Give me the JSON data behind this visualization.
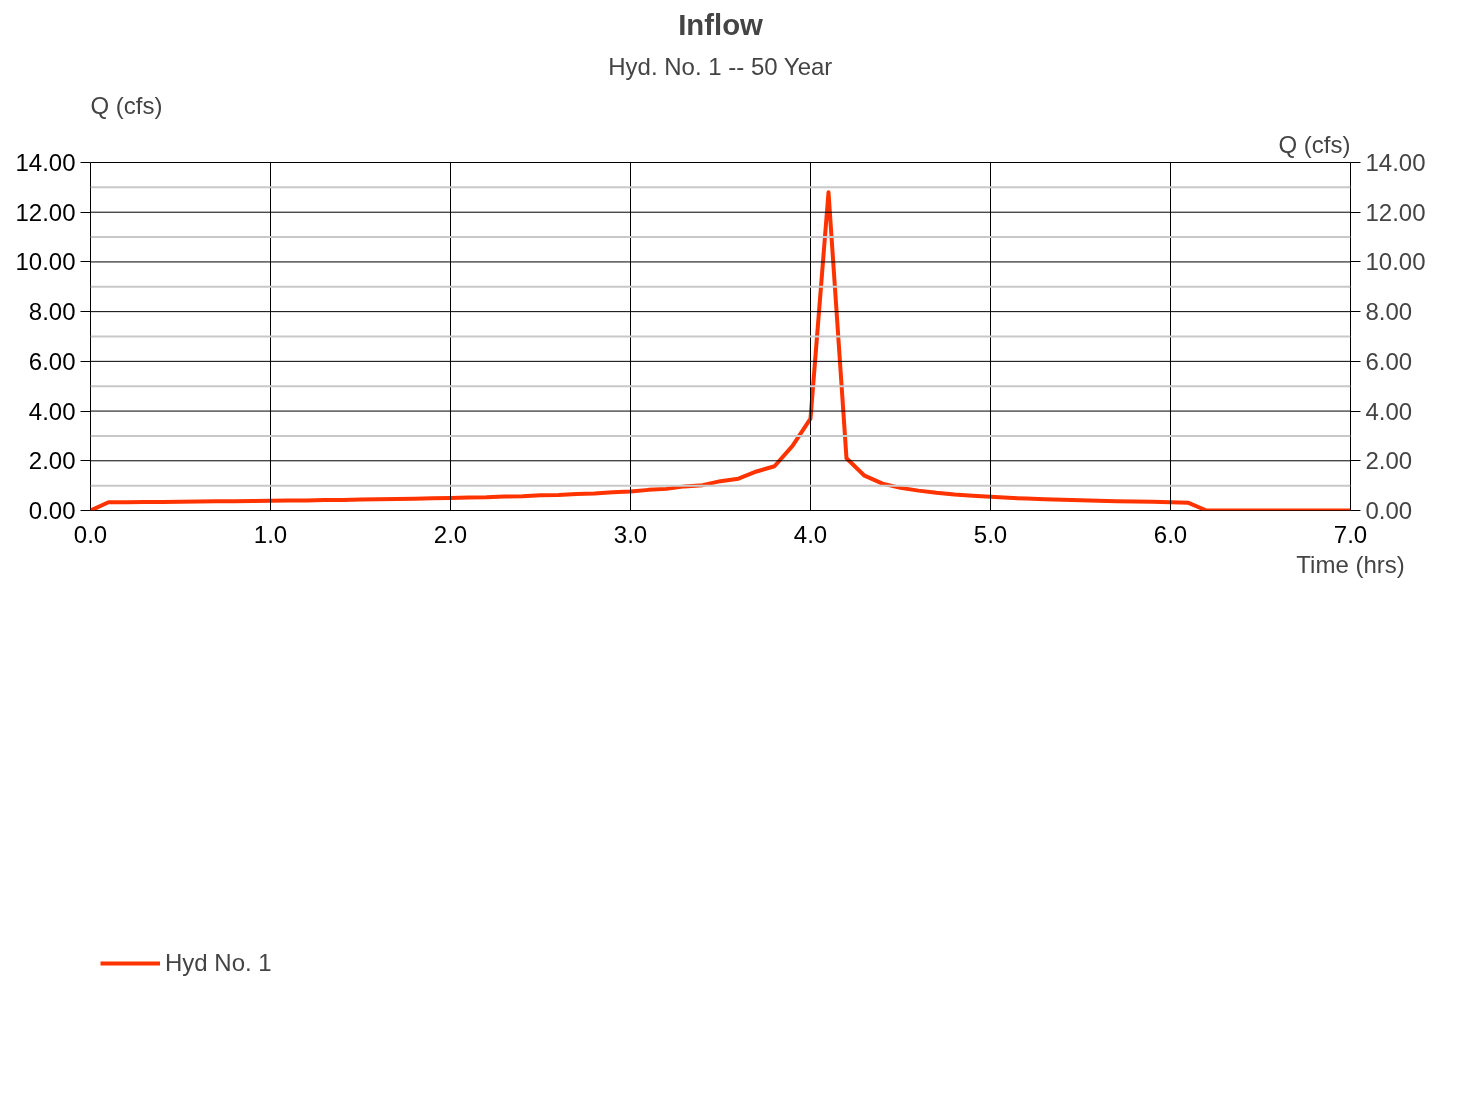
{
  "chart_data": {
    "type": "line",
    "title": "Inflow",
    "subtitle": "Hyd. No. 1 -- 50 Year",
    "xlabel": "Time (hrs)",
    "ylabel": "Q (cfs)",
    "y2label": "Q (cfs)",
    "x": [
      0.0,
      0.1,
      0.2,
      0.3,
      0.4,
      0.5,
      0.6,
      0.7,
      0.8,
      0.9,
      1.0,
      1.1,
      1.2,
      1.3,
      1.4,
      1.5,
      1.6,
      1.7,
      1.8,
      1.9,
      2.0,
      2.1,
      2.2,
      2.3,
      2.4,
      2.5,
      2.6,
      2.7,
      2.8,
      2.9,
      3.0,
      3.1,
      3.2,
      3.3,
      3.4,
      3.5,
      3.6,
      3.7,
      3.8,
      3.9,
      4.0,
      4.1,
      4.2,
      4.3,
      4.4,
      4.5,
      4.6,
      4.7,
      4.8,
      4.9,
      5.0,
      5.1,
      5.2,
      5.3,
      5.4,
      5.5,
      5.6,
      5.7,
      5.8,
      5.9,
      6.0,
      6.1,
      6.2,
      6.3,
      6.4,
      6.5,
      6.6,
      6.7,
      6.8,
      6.9,
      7.0
    ],
    "series": [
      {
        "name": "Hyd No. 1",
        "color": "#ff3300",
        "values": [
          0,
          0.33,
          0.33,
          0.34,
          0.34,
          0.35,
          0.36,
          0.37,
          0.37,
          0.38,
          0.39,
          0.4,
          0.4,
          0.42,
          0.42,
          0.44,
          0.45,
          0.46,
          0.47,
          0.49,
          0.5,
          0.52,
          0.53,
          0.56,
          0.57,
          0.61,
          0.62,
          0.66,
          0.68,
          0.73,
          0.76,
          0.83,
          0.87,
          0.97,
          1.02,
          1.18,
          1.28,
          1.57,
          1.78,
          2.6,
          3.7,
          12.8,
          2.1,
          1.4,
          1.08,
          0.91,
          0.8,
          0.71,
          0.64,
          0.59,
          0.55,
          0.51,
          0.48,
          0.45,
          0.43,
          0.41,
          0.39,
          0.37,
          0.36,
          0.35,
          0.33,
          0.31,
          0,
          0,
          0,
          0,
          0,
          0,
          0,
          0,
          0
        ]
      }
    ],
    "xlim": [
      0,
      7
    ],
    "xticks": [
      {
        "value": 0,
        "label": "0.0"
      },
      {
        "value": 1,
        "label": "1.0"
      },
      {
        "value": 2,
        "label": "2.0"
      },
      {
        "value": 3,
        "label": "3.0"
      },
      {
        "value": 4,
        "label": "4.0"
      },
      {
        "value": 5,
        "label": "5.0"
      },
      {
        "value": 6,
        "label": "6.0"
      },
      {
        "value": 7,
        "label": "7.0"
      }
    ],
    "ylim": [
      0,
      14
    ],
    "yticks": [
      {
        "value": 0,
        "label": "0.00"
      },
      {
        "value": 1,
        "label": null
      },
      {
        "value": 2,
        "label": "2.00"
      },
      {
        "value": 3,
        "label": null
      },
      {
        "value": 4,
        "label": "4.00"
      },
      {
        "value": 5,
        "label": null
      },
      {
        "value": 6,
        "label": "6.00"
      },
      {
        "value": 7,
        "label": null
      },
      {
        "value": 8,
        "label": "8.00"
      },
      {
        "value": 9,
        "label": null
      },
      {
        "value": 10,
        "label": "10.00"
      },
      {
        "value": 11,
        "label": null
      },
      {
        "value": 12,
        "label": "12.00"
      },
      {
        "value": 13,
        "label": null
      },
      {
        "value": 14,
        "label": "14.00"
      }
    ],
    "y2lim": [
      0,
      14
    ],
    "y2ticks": [
      {
        "value": 0,
        "label": "0.00"
      },
      {
        "value": 2,
        "label": "2.00"
      },
      {
        "value": 4,
        "label": "4.00"
      },
      {
        "value": 6,
        "label": "6.00"
      },
      {
        "value": 8,
        "label": "8.00"
      },
      {
        "value": 10,
        "label": "10.00"
      },
      {
        "value": 12,
        "label": "12.00"
      },
      {
        "value": 14,
        "label": "14.00"
      }
    ],
    "grid": true,
    "legend": "bottom left",
    "marker": "none",
    "line_style": "solid"
  }
}
